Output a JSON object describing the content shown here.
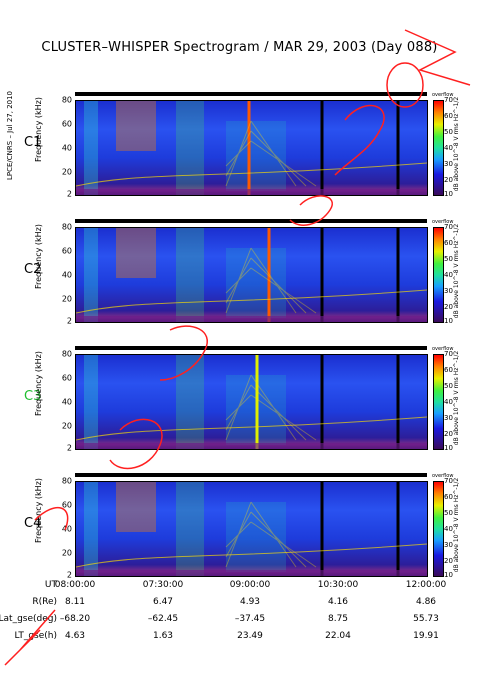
{
  "title": "CLUSTER–WHISPER Spectrogram / MAR 29, 2003 (Day 088)",
  "side_credit": "LPCE/CNRS – Jul 27, 2010",
  "colors": {
    "accent_green_label": "#1fbf2f"
  },
  "chart_data": [
    {
      "type": "heatmap",
      "satellite": "C1",
      "ylabel": "Frequency (kHz)",
      "yticks": [
        "80",
        "60",
        "40",
        "20",
        "2"
      ],
      "ylim": [
        2,
        80
      ],
      "colorbar": {
        "title": "overflow",
        "label": "dB above 10^-8 V rms Hz^-1/2",
        "ticks": [
          "70",
          "60",
          "50",
          "40",
          "30",
          "20",
          "10"
        ],
        "range": [
          10,
          70
        ]
      }
    },
    {
      "type": "heatmap",
      "satellite": "C2",
      "ylabel": "Frequency (kHz)",
      "yticks": [
        "80",
        "60",
        "40",
        "20",
        "2"
      ],
      "ylim": [
        2,
        80
      ],
      "colorbar": {
        "title": "overflow",
        "label": "dB above 10^-8 V rms Hz^-1/2",
        "ticks": [
          "70",
          "60",
          "50",
          "40",
          "30",
          "20",
          "10"
        ],
        "range": [
          10,
          70
        ]
      }
    },
    {
      "type": "heatmap",
      "satellite": "C3",
      "ylabel": "Frequency (kHz)",
      "yticks": [
        "80",
        "60",
        "40",
        "20",
        "2"
      ],
      "ylim": [
        2,
        80
      ],
      "colorbar": {
        "title": "overflow",
        "label": "dB above 10^-8 V rms Hz^-1/2",
        "ticks": [
          "70",
          "60",
          "50",
          "40",
          "30",
          "20",
          "10"
        ],
        "range": [
          10,
          70
        ]
      }
    },
    {
      "type": "heatmap",
      "satellite": "C4",
      "ylabel": "Frequency (kHz)",
      "yticks": [
        "80",
        "60",
        "40",
        "20",
        "2"
      ],
      "ylim": [
        2,
        80
      ],
      "colorbar": {
        "title": "overflow",
        "label": "dB above 10^-8 V rms Hz^-1/2",
        "ticks": [
          "70",
          "60",
          "50",
          "40",
          "30",
          "20",
          "10"
        ],
        "range": [
          10,
          70
        ]
      }
    }
  ],
  "ephemeris": {
    "rows": [
      {
        "label": "UT",
        "values": [
          "08:00:00",
          "07:30:00",
          "09:00:00",
          "10:30:00",
          "12:00:00"
        ]
      },
      {
        "label": "R(Re)",
        "values": [
          "8.11",
          "6.47",
          "4.93",
          "4.16",
          "4.86"
        ]
      },
      {
        "label": "Lat_gse(deg)",
        "values": [
          "–68.20",
          "–62.45",
          "–37.45",
          "8.75",
          "55.73"
        ]
      },
      {
        "label": "LT_gse(h)",
        "values": [
          "4.63",
          "1.63",
          "23.49",
          "22.04",
          "19.91"
        ]
      }
    ]
  }
}
